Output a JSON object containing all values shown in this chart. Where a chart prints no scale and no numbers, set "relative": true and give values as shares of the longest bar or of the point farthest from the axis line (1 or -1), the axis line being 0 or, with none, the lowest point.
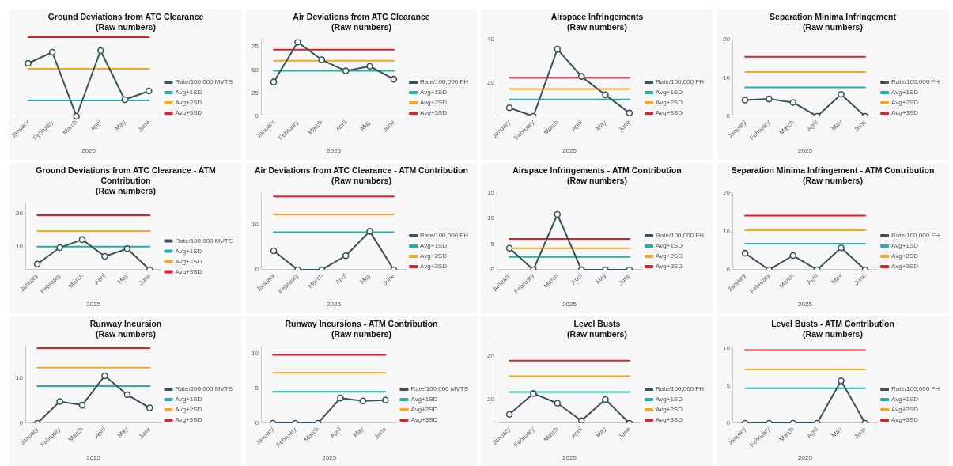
{
  "chart_data": [
    {
      "type": "line",
      "title": "Ground Deviations from ATC Clearance",
      "subtitle": "(Raw numbers)",
      "xlabel": "2025",
      "relative": true,
      "legend": "right",
      "categories": [
        "January",
        "February",
        "March",
        "April",
        "May",
        "June"
      ],
      "series": [
        {
          "name": "Rate/100,000 MVTS",
          "color": "#37535a",
          "marker": "circle",
          "values": [
            0.67,
            0.81,
            0,
            0.83,
            0.21,
            0.32
          ]
        },
        {
          "name": "Avg+1SD",
          "color": "#20b2aa",
          "values": [
            0.2,
            0.2,
            0.2,
            0.2,
            0.2,
            0.2
          ]
        },
        {
          "name": "Avg+2SD",
          "color": "#f5a623",
          "values": [
            0.6,
            0.6,
            0.6,
            0.6,
            0.6,
            0.6
          ]
        },
        {
          "name": "Avg+3SD",
          "color": "#e0202c",
          "values": [
            1,
            1,
            1,
            1,
            1,
            1
          ]
        }
      ]
    },
    {
      "type": "line",
      "title": "Air Deviations from ATC Clearance",
      "subtitle": "(Raw numbers)",
      "xlabel": "2025",
      "legend": "right",
      "ylim": [
        0,
        83
      ],
      "yticks": [
        0,
        25,
        50,
        75
      ],
      "categories": [
        "January",
        "February",
        "March",
        "April",
        "May",
        "June"
      ],
      "series": [
        {
          "name": "Rate/100,000 FH",
          "color": "#37535a",
          "marker": "circle",
          "values": [
            37,
            80,
            61,
            49,
            54,
            40
          ]
        },
        {
          "name": "Avg+1SD",
          "color": "#20b2aa",
          "values": [
            49,
            49,
            49,
            49,
            49,
            49
          ]
        },
        {
          "name": "Avg+2SD",
          "color": "#f5a623",
          "values": [
            60,
            60,
            60,
            60,
            60,
            60
          ]
        },
        {
          "name": "Avg+3SD",
          "color": "#e0202c",
          "values": [
            72,
            72,
            72,
            72,
            72,
            72
          ]
        }
      ]
    },
    {
      "type": "line",
      "title": "Airspace Infringements",
      "subtitle": "(Raw numbers)",
      "xlabel": "2025",
      "legend": "right",
      "ylim": [
        4.5,
        40
      ],
      "yticks": [
        20,
        40
      ],
      "categories": [
        "January",
        "February",
        "March",
        "April",
        "May",
        "June"
      ],
      "series": [
        {
          "name": "Rate/100,000 FH",
          "color": "#37535a",
          "marker": "circle",
          "values": [
            8.4,
            4.5,
            35.5,
            22.9,
            14.4,
            6
          ]
        },
        {
          "name": "Avg+1SD",
          "color": "#20b2aa",
          "values": [
            12.3,
            12.3,
            12.3,
            12.3,
            12.3,
            12.3
          ]
        },
        {
          "name": "Avg+2SD",
          "color": "#f5a623",
          "values": [
            17.1,
            17.1,
            17.1,
            17.1,
            17.1,
            17.1
          ]
        },
        {
          "name": "Avg+3SD",
          "color": "#e0202c",
          "values": [
            22.3,
            22.3,
            22.3,
            22.3,
            22.3,
            22.3
          ]
        }
      ]
    },
    {
      "type": "line",
      "title": "Separation Minima Infringement",
      "subtitle": "(Raw numbers)",
      "xlabel": "2025",
      "legend": "right",
      "ylim": [
        0,
        20
      ],
      "yticks": [
        0,
        10,
        20
      ],
      "categories": [
        "January",
        "February",
        "March",
        "April",
        "May",
        "June"
      ],
      "series": [
        {
          "name": "Rate/100,000 FH",
          "color": "#37535a",
          "marker": "circle",
          "values": [
            4.2,
            4.5,
            3.6,
            0,
            5.7,
            0
          ]
        },
        {
          "name": "Avg+1SD",
          "color": "#20b2aa",
          "values": [
            7.5,
            7.5,
            7.5,
            7.5,
            7.5,
            7.5
          ]
        },
        {
          "name": "Avg+2SD",
          "color": "#f5a623",
          "values": [
            11.5,
            11.5,
            11.5,
            11.5,
            11.5,
            11.5
          ]
        },
        {
          "name": "Avg+3SD",
          "color": "#e0202c",
          "values": [
            15.5,
            15.5,
            15.5,
            15.5,
            15.5,
            15.5
          ]
        }
      ]
    },
    {
      "type": "line",
      "title": "Ground Deviations from ATC Clearance - ATM Contribution",
      "subtitle": "(Raw numbers)",
      "xlabel": "2025",
      "legend": "right",
      "ylim": [
        3.1,
        23
      ],
      "yticks": [
        10,
        20
      ],
      "categories": [
        "January",
        "February",
        "March",
        "April",
        "May",
        "June"
      ],
      "series": [
        {
          "name": "Rate/100,000 MVTS",
          "color": "#37535a",
          "marker": "circle",
          "values": [
            4.8,
            9.7,
            12.1,
            7.1,
            9.4,
            3.1
          ]
        },
        {
          "name": "Avg+1SD",
          "color": "#20b2aa",
          "values": [
            10,
            10,
            10,
            10,
            10,
            10
          ]
        },
        {
          "name": "Avg+2SD",
          "color": "#f5a623",
          "values": [
            14.7,
            14.7,
            14.7,
            14.7,
            14.7,
            14.7
          ]
        },
        {
          "name": "Avg+3SD",
          "color": "#e0202c",
          "values": [
            19.4,
            19.4,
            19.4,
            19.4,
            19.4,
            19.4
          ]
        }
      ]
    },
    {
      "type": "line",
      "title": "Air Deviations from ATC Clearance - ATM Contribution",
      "subtitle": "(Raw numbers)",
      "xlabel": "2025",
      "legend": "right",
      "ylim": [
        0,
        17
      ],
      "yticks": [
        0,
        10
      ],
      "categories": [
        "January",
        "February",
        "March",
        "April",
        "May",
        "June"
      ],
      "series": [
        {
          "name": "Rate/100,000 FH",
          "color": "#37535a",
          "marker": "circle",
          "values": [
            4.2,
            0,
            0,
            3.1,
            8.5,
            0
          ]
        },
        {
          "name": "Avg+1SD",
          "color": "#20b2aa",
          "values": [
            8.3,
            8.3,
            8.3,
            8.3,
            8.3,
            8.3
          ]
        },
        {
          "name": "Avg+2SD",
          "color": "#f5a623",
          "values": [
            12.2,
            12.2,
            12.2,
            12.2,
            12.2,
            12.2
          ]
        },
        {
          "name": "Avg+3SD",
          "color": "#e0202c",
          "values": [
            16.2,
            16.2,
            16.2,
            16.2,
            16.2,
            16.2
          ]
        }
      ]
    },
    {
      "type": "line",
      "title": "Airspace Infringements - ATM Contribution",
      "subtitle": "(Raw numbers)",
      "xlabel": "2025",
      "legend": "right",
      "ylim": [
        0,
        15
      ],
      "yticks": [
        0,
        5,
        10,
        15
      ],
      "categories": [
        "January",
        "February",
        "March",
        "April",
        "May",
        "June"
      ],
      "series": [
        {
          "name": "Rate/100,000 FH",
          "color": "#37535a",
          "marker": "circle",
          "values": [
            4.2,
            0,
            10.8,
            0,
            0,
            0
          ]
        },
        {
          "name": "Avg+1SD",
          "color": "#20b2aa",
          "values": [
            2.5,
            2.5,
            2.5,
            2.5,
            2.5,
            2.5
          ]
        },
        {
          "name": "Avg+2SD",
          "color": "#f5a623",
          "values": [
            4.2,
            4.2,
            4.2,
            4.2,
            4.2,
            4.2
          ]
        },
        {
          "name": "Avg+3SD",
          "color": "#e0202c",
          "values": [
            6,
            6,
            6,
            6,
            6,
            6
          ]
        }
      ]
    },
    {
      "type": "line",
      "title": "Separation Minima Infringement - ATM Contribution",
      "subtitle": "(Raw numbers)",
      "xlabel": "2025",
      "legend": "right",
      "ylim": [
        0,
        20
      ],
      "yticks": [
        0,
        10,
        20
      ],
      "categories": [
        "January",
        "February",
        "March",
        "April",
        "May",
        "June"
      ],
      "series": [
        {
          "name": "Rate/100,000 FH",
          "color": "#37535a",
          "marker": "circle",
          "values": [
            4.3,
            0,
            3.7,
            0,
            5.7,
            0
          ]
        },
        {
          "name": "Avg+1SD",
          "color": "#20b2aa",
          "values": [
            6.8,
            6.8,
            6.8,
            6.8,
            6.8,
            6.8
          ]
        },
        {
          "name": "Avg+2SD",
          "color": "#f5a623",
          "values": [
            10.3,
            10.3,
            10.3,
            10.3,
            10.3,
            10.3
          ]
        },
        {
          "name": "Avg+3SD",
          "color": "#e0202c",
          "values": [
            14.1,
            14.1,
            14.1,
            14.1,
            14.1,
            14.1
          ]
        }
      ]
    },
    {
      "type": "line",
      "title": "Runway Incursion",
      "subtitle": "(Raw numbers)",
      "xlabel": "2025",
      "legend": "right",
      "ylim": [
        0,
        17
      ],
      "yticks": [
        0,
        10
      ],
      "categories": [
        "January",
        "February",
        "March",
        "April",
        "May",
        "June"
      ],
      "series": [
        {
          "name": "Rate/100,000 MVTS",
          "color": "#37535a",
          "marker": "circle",
          "values": [
            0,
            4.8,
            4,
            10.5,
            6.3,
            3.4
          ]
        },
        {
          "name": "Avg+1SD",
          "color": "#20b2aa",
          "values": [
            8.2,
            8.2,
            8.2,
            8.2,
            8.2,
            8.2
          ]
        },
        {
          "name": "Avg+2SD",
          "color": "#f5a623",
          "values": [
            12.3,
            12.3,
            12.3,
            12.3,
            12.3,
            12.3
          ]
        },
        {
          "name": "Avg+3SD",
          "color": "#e0202c",
          "values": [
            16.6,
            16.6,
            16.6,
            16.6,
            16.6,
            16.6
          ]
        }
      ]
    },
    {
      "type": "line",
      "title": "Runway Incursions - ATM Contribution",
      "subtitle": "(Raw numbers)",
      "xlabel": "2025",
      "legend": "right",
      "ylim": [
        0,
        11
      ],
      "yticks": [
        0,
        5,
        10
      ],
      "categories": [
        "January",
        "February",
        "March",
        "April",
        "May",
        "June"
      ],
      "series": [
        {
          "name": "Rate/100,000 MVTS",
          "color": "#37535a",
          "marker": "circle",
          "values": [
            0,
            0,
            0,
            3.6,
            3.2,
            3.3
          ]
        },
        {
          "name": "Avg+1SD",
          "color": "#20b2aa",
          "values": [
            4.5,
            4.5,
            4.5,
            4.5,
            4.5,
            4.5
          ]
        },
        {
          "name": "Avg+2SD",
          "color": "#f5a623",
          "values": [
            7.2,
            7.2,
            7.2,
            7.2,
            7.2,
            7.2
          ]
        },
        {
          "name": "Avg+3SD",
          "color": "#e0202c",
          "values": [
            9.8,
            9.8,
            9.8,
            9.8,
            9.8,
            9.8
          ]
        }
      ]
    },
    {
      "type": "line",
      "title": "Level Busts",
      "subtitle": "(Raw numbers)",
      "xlabel": "2025",
      "legend": "right",
      "ylim": [
        8.8,
        45
      ],
      "yticks": [
        20,
        40
      ],
      "categories": [
        "January",
        "February",
        "March",
        "April",
        "May",
        "June"
      ],
      "series": [
        {
          "name": "Rate/100,000 FH",
          "color": "#37535a",
          "marker": "circle",
          "values": [
            13,
            22.8,
            18.2,
            10,
            20,
            8.8
          ]
        },
        {
          "name": "Avg+1SD",
          "color": "#20b2aa",
          "values": [
            23.5,
            23.5,
            23.5,
            23.5,
            23.5,
            23.5
          ]
        },
        {
          "name": "Avg+2SD",
          "color": "#f5a623",
          "values": [
            31,
            31,
            31,
            31,
            31,
            31
          ]
        },
        {
          "name": "Avg+3SD",
          "color": "#e0202c",
          "values": [
            38.3,
            38.3,
            38.3,
            38.3,
            38.3,
            38.3
          ]
        }
      ]
    },
    {
      "type": "line",
      "title": "Level Busts - ATM Contribution",
      "subtitle": "(Raw numbers)",
      "xlabel": "2025",
      "legend": "right",
      "ylim": [
        0,
        10.3
      ],
      "yticks": [
        0,
        5,
        10
      ],
      "categories": [
        "January",
        "February",
        "March",
        "April",
        "May",
        "June"
      ],
      "series": [
        {
          "name": "Rate/100,000 FH",
          "color": "#37535a",
          "marker": "circle",
          "values": [
            0,
            0,
            0,
            0,
            5.7,
            0
          ]
        },
        {
          "name": "Avg+1SD",
          "color": "#20b2aa",
          "values": [
            4.7,
            4.7,
            4.7,
            4.7,
            4.7,
            4.7
          ]
        },
        {
          "name": "Avg+2SD",
          "color": "#f5a623",
          "values": [
            7.2,
            7.2,
            7.2,
            7.2,
            7.2,
            7.2
          ]
        },
        {
          "name": "Avg+3SD",
          "color": "#e0202c",
          "values": [
            9.8,
            9.8,
            9.8,
            9.8,
            9.8,
            9.8
          ]
        }
      ]
    }
  ]
}
